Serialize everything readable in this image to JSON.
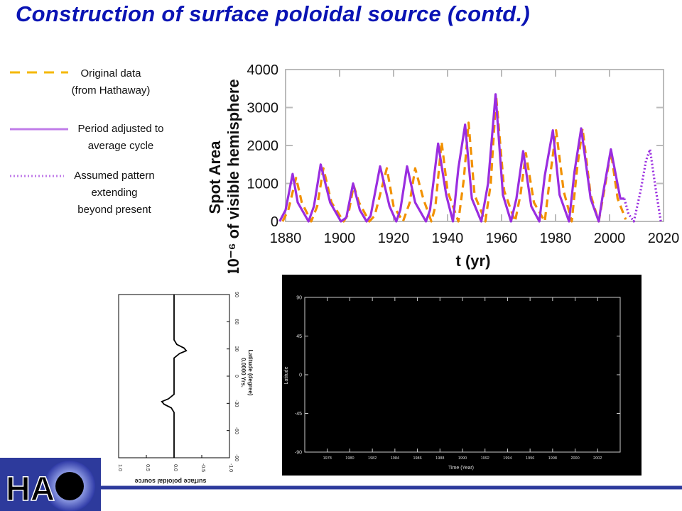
{
  "slide": {
    "title": "Construction of surface poloidal source (contd.)",
    "legend": [
      {
        "line1": "Original data",
        "line2": "(from Hathaway)",
        "line3": "",
        "style": "dashed",
        "color": "#f5b800"
      },
      {
        "line1": "Period adjusted to",
        "line2": "average cycle",
        "line3": "",
        "style": "solid",
        "color": "#c07ce8"
      },
      {
        "line1": "Assumed pattern",
        "line2": "extending",
        "line3": "beyond present",
        "style": "dotted",
        "color": "#c07ce8"
      }
    ],
    "logo": {
      "text": "HA"
    }
  },
  "chart_data": [
    {
      "type": "line",
      "xlabel": "t (yr)",
      "ylabel_line1": "Spot Area",
      "ylabel_line2": "10⁻⁶ of visible hemisphere",
      "xlim": [
        1880,
        2020
      ],
      "ylim": [
        0,
        4000
      ],
      "xticks": [
        "1880",
        "1900",
        "1920",
        "1940",
        "1960",
        "1980",
        "2000",
        "2020"
      ],
      "yticks": [
        "0",
        "1000",
        "2000",
        "3000",
        "4000"
      ],
      "series": [
        {
          "style": "dashed",
          "color": "#f29100",
          "x": [
            1878.9,
            1881.0,
            1883.9,
            1886.0,
            1889.5,
            1891.7,
            1894.0,
            1897.0,
            1901.5,
            1903.3,
            1905.2,
            1907.2,
            1911.0,
            1913.0,
            1917.5,
            1920.0,
            1923.5,
            1926.0,
            1928.0,
            1931.0,
            1934.0,
            1935.5,
            1937.8,
            1940.0,
            1944.0,
            1946.0,
            1947.8,
            1950.0,
            1954.0,
            1956.0,
            1958.0,
            1961.0,
            1965.0,
            1967.0,
            1969.0,
            1972.0,
            1976.0,
            1978.0,
            1980.2,
            1983.0,
            1986.0,
            1988.0,
            1990.0,
            1993.0,
            1996.0,
            1998.0,
            2000.5,
            2003.0,
            2006.0
          ],
          "y": [
            0,
            300,
            1150,
            500,
            0,
            400,
            1400,
            500,
            0,
            200,
            950,
            500,
            0,
            150,
            1400,
            400,
            0,
            500,
            1400,
            600,
            0,
            400,
            2100,
            800,
            0,
            1100,
            2600,
            700,
            0,
            1000,
            3300,
            800,
            0,
            700,
            1800,
            500,
            0,
            1200,
            2400,
            800,
            0,
            1400,
            2450,
            700,
            0,
            800,
            1850,
            600,
            50
          ]
        },
        {
          "style": "solid",
          "color": "#9a2de0",
          "x": [
            1877.8,
            1880.0,
            1882.6,
            1884.5,
            1888.5,
            1890.5,
            1893.0,
            1896.5,
            1900.5,
            1902.5,
            1905.0,
            1907.5,
            1910.0,
            1911.5,
            1915.0,
            1918.5,
            1921.0,
            1922.5,
            1925.0,
            1928.0,
            1932.0,
            1933.5,
            1936.5,
            1939.5,
            1942.0,
            1944.0,
            1946.5,
            1949.0,
            1952.5,
            1955.0,
            1957.8,
            1960.5,
            1963.5,
            1965.5,
            1968.0,
            1971.0,
            1974.0,
            1976.0,
            1979.0,
            1981.5,
            1985.0,
            1987.0,
            1989.5,
            1993.0,
            1996.0,
            1997.5,
            2000.5,
            2004.0,
            2005.5
          ],
          "y": [
            0,
            300,
            1250,
            500,
            0,
            400,
            1500,
            500,
            0,
            100,
            1000,
            300,
            0,
            150,
            1450,
            400,
            0,
            300,
            1450,
            500,
            0,
            300,
            2050,
            700,
            0,
            1400,
            2550,
            600,
            0,
            1000,
            3350,
            700,
            0,
            600,
            1850,
            400,
            0,
            1200,
            2400,
            700,
            0,
            1300,
            2450,
            600,
            0,
            700,
            1900,
            600,
            600
          ]
        },
        {
          "style": "dotted",
          "color": "#9a2de0",
          "x": [
            2005.5,
            2007.0,
            2009.0,
            2011.5,
            2013.5,
            2015.0,
            2017.0,
            2019.0
          ],
          "y": [
            600,
            200,
            0,
            800,
            1600,
            1900,
            900,
            0
          ]
        }
      ]
    },
    {
      "type": "line",
      "title": "surface poloidal source",
      "xlabel": "Latitude (degree)",
      "subtitle": "0.0000 Yrs.",
      "xlim": [
        -90,
        90
      ],
      "ylim": [
        -1,
        1
      ],
      "xticks": [
        "90",
        "60",
        "30",
        "0",
        "-30",
        "-60",
        "-90"
      ],
      "yticks": [
        "1.0",
        "0.5",
        "0.0",
        "-0.5",
        "-1.0"
      ],
      "series": [
        {
          "color": "#000000",
          "x": [
            90,
            60,
            40,
            35,
            31,
            28,
            25,
            20,
            0,
            -20,
            -25,
            -28,
            -31,
            -35,
            -40,
            -60,
            -90
          ],
          "y": [
            0,
            0,
            0,
            -0.05,
            -0.18,
            -0.22,
            -0.1,
            0,
            0,
            0,
            0.1,
            0.22,
            0.18,
            0.05,
            0,
            0,
            0
          ]
        }
      ]
    },
    {
      "type": "heatmap",
      "ylabel": "Latitude",
      "xlabel": "Time (Year)",
      "xlim": [
        1976,
        2004
      ],
      "ylim": [
        -90,
        90
      ],
      "xticks": [
        "1978",
        "1980",
        "1982",
        "1984",
        "1986",
        "1988",
        "1990",
        "1992",
        "1994",
        "1996",
        "1998",
        "2000",
        "2002"
      ],
      "yticks": [
        "90",
        "45",
        "0",
        "-45",
        "-90"
      ]
    }
  ]
}
